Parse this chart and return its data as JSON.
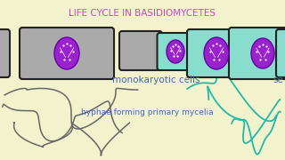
{
  "title": "LIFE CYCLE IN BASIDIOMYCETES",
  "title_color": "#cc44cc",
  "title_fontsize": 7.5,
  "bg_color": "#f2f2cc",
  "label_monokaryotic": "monokaryotic cells",
  "label_hyphae": "hyphae forming primary mycelia",
  "label_s": "se",
  "label_color": "#4466bb",
  "gray_color": "#aaaaaa",
  "teal_color": "#88ddcc",
  "nucleus_color": "#9922cc",
  "nucleus_border": "#6600aa",
  "cell_border": "#222222",
  "cell_lw": 1.5
}
